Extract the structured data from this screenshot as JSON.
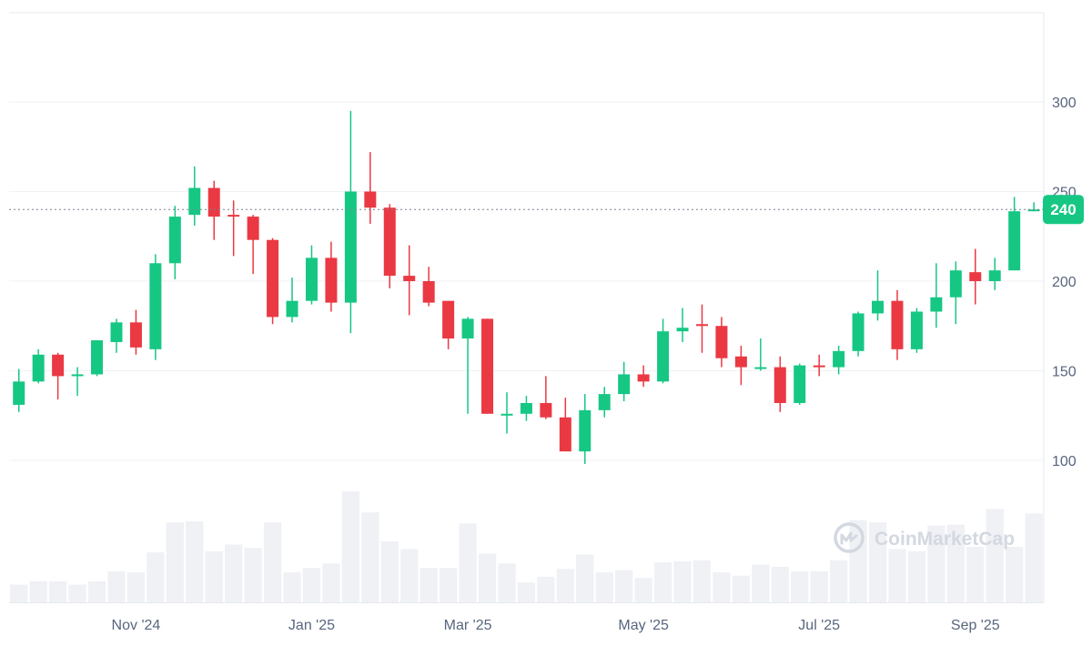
{
  "chart_data": {
    "type": "candlestick",
    "x": [
      "2024-09-22",
      "2024-09-29",
      "2024-10-06",
      "2024-10-13",
      "2024-10-20",
      "2024-10-27",
      "2024-11-03",
      "2024-11-10",
      "2024-11-17",
      "2024-11-24",
      "2024-12-01",
      "2024-12-08",
      "2024-12-15",
      "2024-12-22",
      "2024-12-29",
      "2025-01-05",
      "2025-01-12",
      "2025-01-19",
      "2025-01-26",
      "2025-02-02",
      "2025-02-09",
      "2025-02-16",
      "2025-02-23",
      "2025-03-02",
      "2025-03-09",
      "2025-03-16",
      "2025-03-23",
      "2025-03-30",
      "2025-04-06",
      "2025-04-13",
      "2025-04-20",
      "2025-04-27",
      "2025-05-04",
      "2025-05-11",
      "2025-05-18",
      "2025-05-25",
      "2025-06-01",
      "2025-06-08",
      "2025-06-15",
      "2025-06-22",
      "2025-06-29",
      "2025-07-06",
      "2025-07-13",
      "2025-07-20",
      "2025-07-27",
      "2025-08-03",
      "2025-08-10",
      "2025-08-17",
      "2025-08-24",
      "2025-08-31",
      "2025-09-07",
      "2025-09-14"
    ],
    "ohlc": [
      [
        131,
        151,
        127,
        144
      ],
      [
        144,
        162,
        143,
        159
      ],
      [
        159,
        160,
        134,
        147
      ],
      [
        147,
        152,
        136,
        148
      ],
      [
        148,
        167,
        147,
        167
      ],
      [
        166,
        179,
        160,
        177
      ],
      [
        177,
        184,
        159,
        163
      ],
      [
        162,
        215,
        156,
        210
      ],
      [
        210,
        242,
        201,
        236
      ],
      [
        237,
        264,
        231,
        252
      ],
      [
        252,
        256,
        223,
        236
      ],
      [
        237,
        245,
        214,
        236
      ],
      [
        236,
        237,
        204,
        223
      ],
      [
        223,
        224,
        176,
        180
      ],
      [
        180,
        202,
        177,
        189
      ],
      [
        189,
        220,
        187,
        213
      ],
      [
        213,
        222,
        183,
        188
      ],
      [
        188,
        295,
        171,
        250
      ],
      [
        250,
        272,
        232,
        241
      ],
      [
        241,
        243,
        196,
        203
      ],
      [
        203,
        220,
        181,
        200
      ],
      [
        200,
        208,
        186,
        188
      ],
      [
        189,
        189,
        162,
        168
      ],
      [
        168,
        180,
        126,
        179
      ],
      [
        179,
        179,
        126,
        126
      ],
      [
        126,
        138,
        115,
        126
      ],
      [
        126,
        136,
        122,
        132
      ],
      [
        132,
        147,
        123,
        124
      ],
      [
        124,
        135,
        105,
        105
      ],
      [
        105,
        137,
        98,
        128
      ],
      [
        128,
        141,
        124,
        137
      ],
      [
        137,
        155,
        133,
        148
      ],
      [
        148,
        153,
        141,
        144
      ],
      [
        144,
        179,
        143,
        172
      ],
      [
        172,
        185,
        166,
        174
      ],
      [
        176,
        187,
        160,
        175
      ],
      [
        175,
        180,
        152,
        157
      ],
      [
        158,
        164,
        142,
        152
      ],
      [
        152,
        168,
        150,
        152
      ],
      [
        152,
        158,
        127,
        132
      ],
      [
        132,
        154,
        131,
        153
      ],
      [
        153,
        159,
        147,
        152
      ],
      [
        152,
        164,
        148,
        161
      ],
      [
        161,
        183,
        158,
        182
      ],
      [
        182,
        206,
        178,
        189
      ],
      [
        189,
        195,
        156,
        162
      ],
      [
        162,
        185,
        160,
        183
      ],
      [
        183,
        210,
        174,
        191
      ],
      [
        191,
        211,
        176,
        206
      ],
      [
        205,
        218,
        187,
        200
      ],
      [
        200,
        213,
        195,
        206
      ],
      [
        206,
        247,
        206,
        239
      ]
    ],
    "last_candle": {
      "x": "2025-09-21",
      "open": 239,
      "high": 244,
      "low": 239,
      "close": 240
    },
    "volume_relative": [
      0.16,
      0.19,
      0.19,
      0.16,
      0.19,
      0.28,
      0.27,
      0.45,
      0.72,
      0.73,
      0.46,
      0.52,
      0.49,
      0.72,
      0.27,
      0.31,
      0.35,
      1.0,
      0.81,
      0.55,
      0.48,
      0.31,
      0.31,
      0.71,
      0.44,
      0.35,
      0.18,
      0.23,
      0.3,
      0.43,
      0.27,
      0.29,
      0.22,
      0.36,
      0.37,
      0.38,
      0.27,
      0.24,
      0.34,
      0.32,
      0.28,
      0.28,
      0.38,
      0.74,
      0.72,
      0.48,
      0.46,
      0.69,
      0.7,
      0.5,
      0.84,
      0.5,
      0.8
    ],
    "ylim": [
      90,
      350
    ],
    "y_ticks": [
      100,
      150,
      200,
      250,
      300
    ],
    "x_tick_labels": [
      {
        "label": "Nov '24",
        "x": "2024-11-03"
      },
      {
        "label": "Jan '25",
        "x": "2025-01-05"
      },
      {
        "label": "Mar '25",
        "x": "2025-03-02"
      },
      {
        "label": "May '25",
        "x": "2025-05-04"
      },
      {
        "label": "Jul '25",
        "x": "2025-07-06"
      },
      {
        "label": "Sep '25",
        "x": "2025-08-31"
      }
    ],
    "current_price": 240,
    "current_price_label": "240",
    "grid": true,
    "colors": {
      "up": "#16c784",
      "down": "#ea3943",
      "volume": "#eff1f5",
      "grid": "#f0f2f5",
      "axis_text": "#58667e",
      "price_line": "#7a8394"
    }
  },
  "watermark": {
    "text": "CoinMarketCap",
    "icon": "coinmarketcap-logo-icon",
    "color": "#d3d8e1"
  }
}
